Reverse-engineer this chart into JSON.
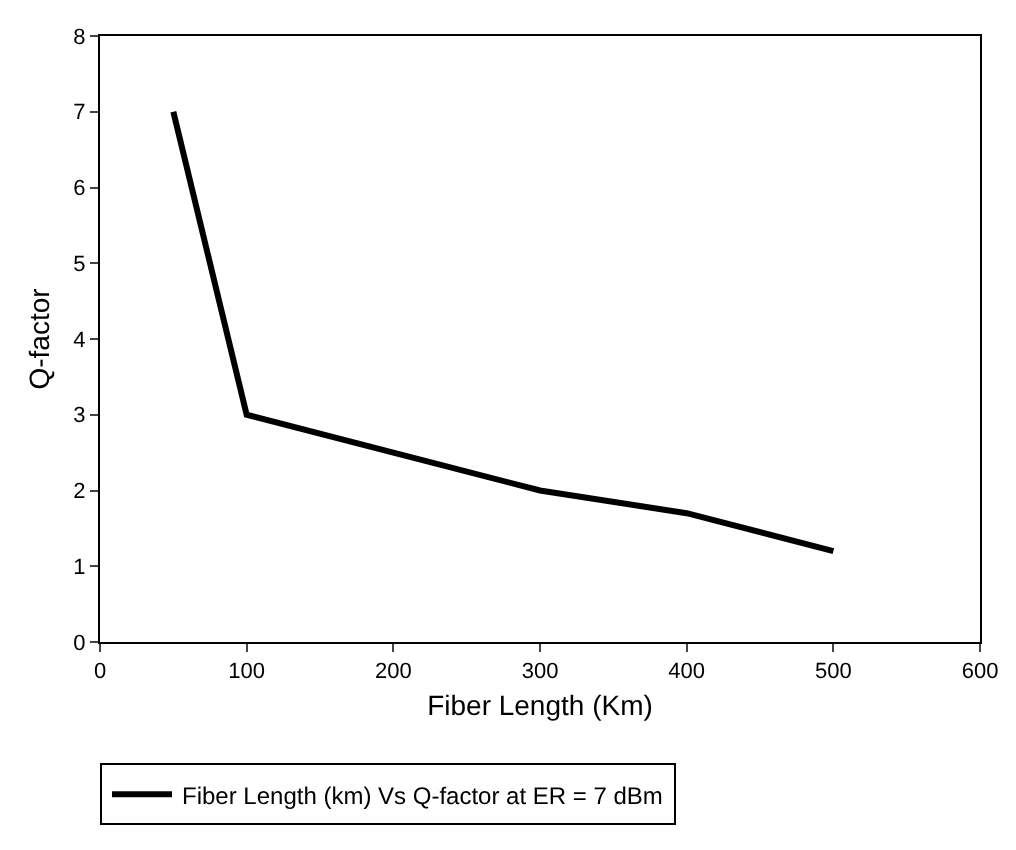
{
  "chart_data": {
    "type": "line",
    "xlabel": "Fiber Length (Km)",
    "ylabel": "Q-factor",
    "x": [
      50,
      100,
      200,
      300,
      400,
      500
    ],
    "series": [
      {
        "name": "Fiber Length (km) Vs Q-factor at ER = 7 dBm",
        "color": "#000000",
        "values": [
          7,
          3,
          2.5,
          2,
          1.7,
          1.2
        ]
      }
    ],
    "xlim": [
      0,
      600
    ],
    "xticks": [
      0,
      100,
      200,
      300,
      400,
      500,
      600
    ],
    "ylim": [
      0,
      8
    ],
    "yticks": [
      0,
      1,
      2,
      3,
      4,
      5,
      6,
      7,
      8
    ],
    "grid": false,
    "legend": "bottom",
    "marker": "none",
    "line_style": "solid"
  }
}
